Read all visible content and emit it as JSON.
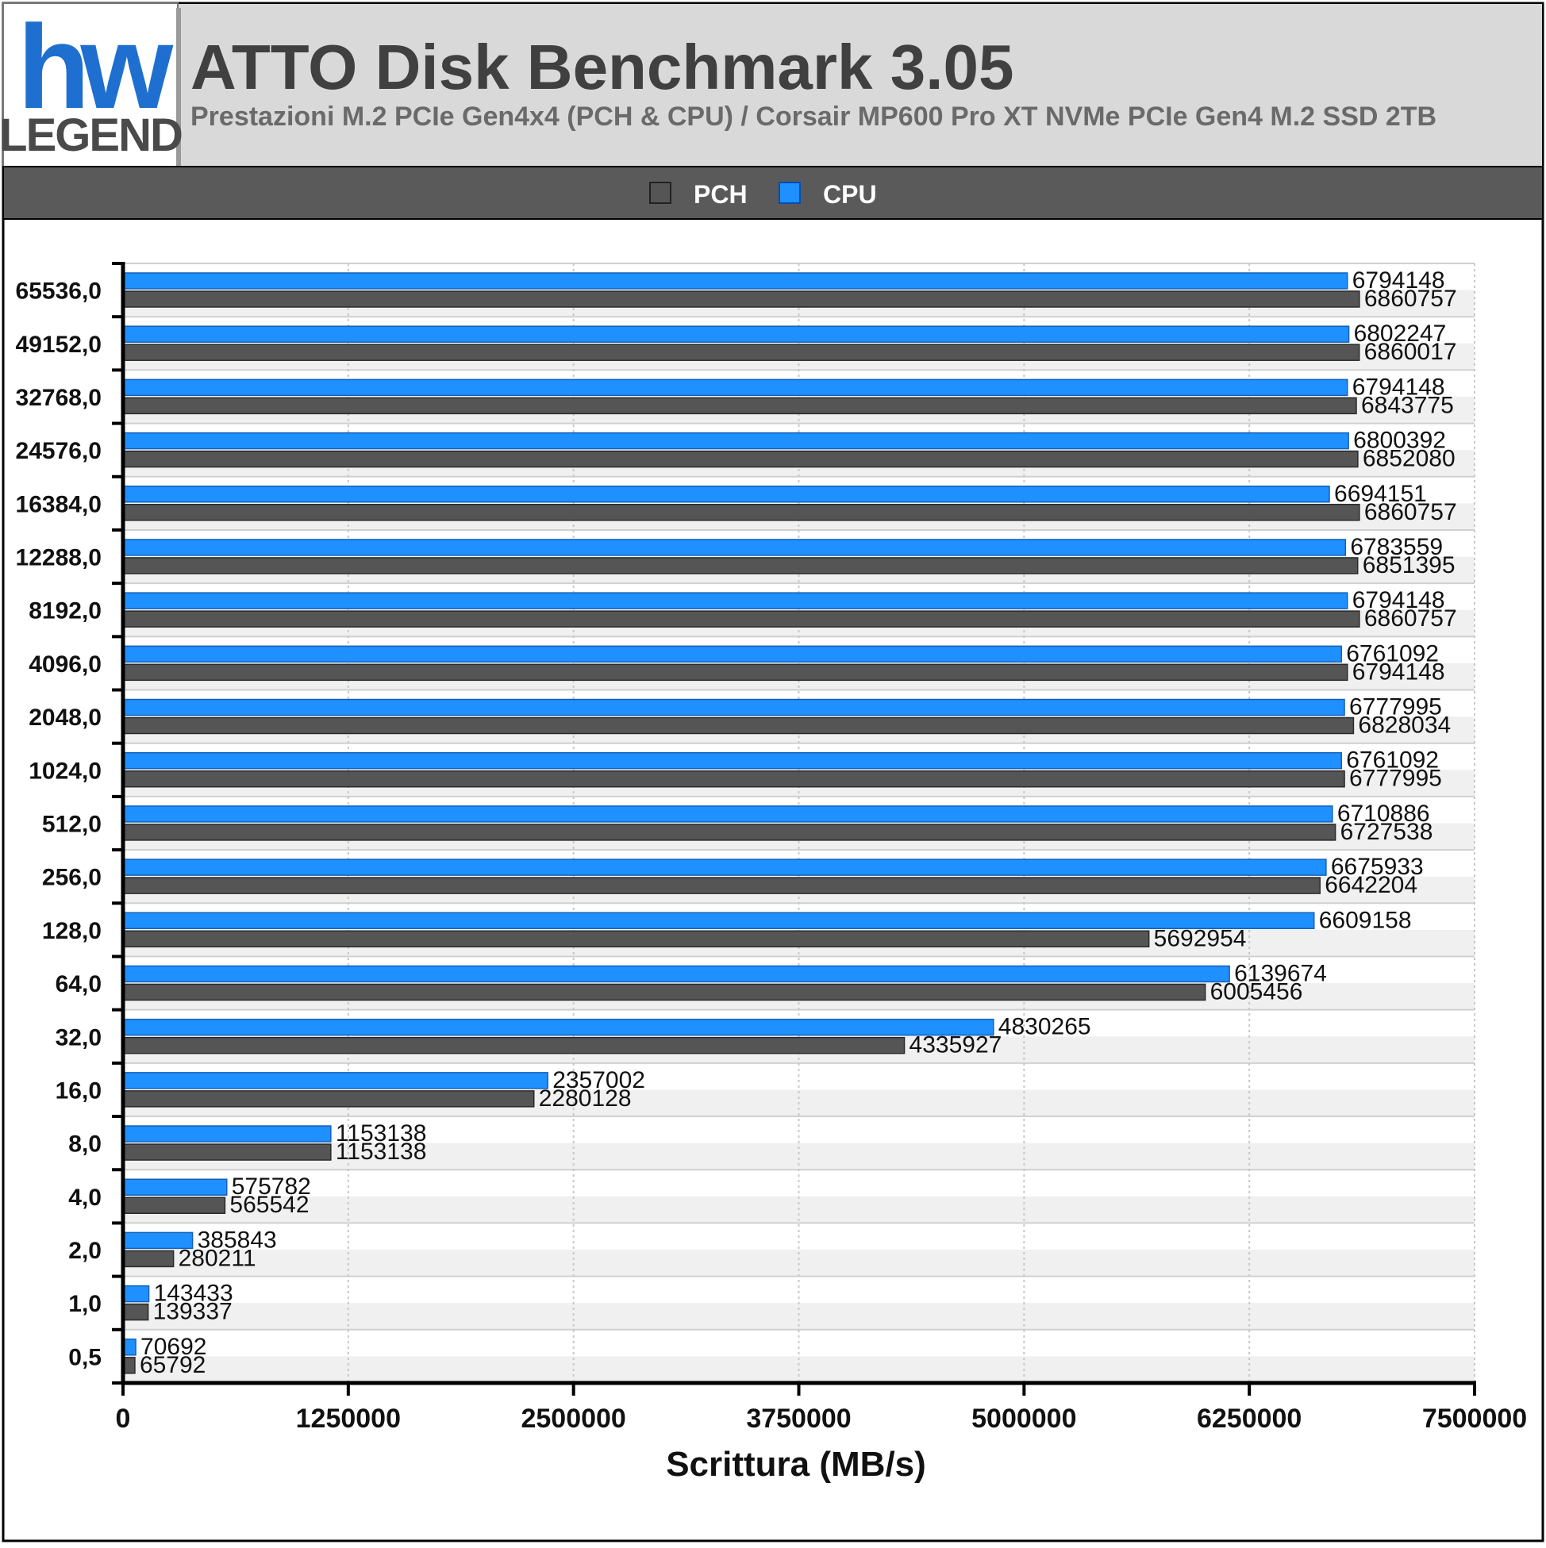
{
  "logo": {
    "mark": "hw",
    "word": "LEGEND"
  },
  "header": {
    "title": "ATTO Disk Benchmark 3.05",
    "subtitle": "Prestazioni M.2 PCIe Gen4x4 (PCH & CPU) / Corsair MP600 Pro XT NVMe PCIe Gen4 M.2 SSD 2TB"
  },
  "colors": {
    "pch": "#555555",
    "cpu": "#1e90ff",
    "header_bg": "#d9d9d9",
    "legend_bar": "#5a5a5a"
  },
  "chart_data": {
    "type": "bar",
    "orientation": "horizontal",
    "categories": [
      "65536,0",
      "49152,0",
      "32768,0",
      "24576,0",
      "16384,0",
      "12288,0",
      "8192,0",
      "4096,0",
      "2048,0",
      "1024,0",
      "512,0",
      "256,0",
      "128,0",
      "64,0",
      "32,0",
      "16,0",
      "8,0",
      "4,0",
      "2,0",
      "1,0",
      "0,5"
    ],
    "series": [
      {
        "name": "CPU",
        "values": [
          6794148,
          6802247,
          6794148,
          6800392,
          6694151,
          6783559,
          6794148,
          6761092,
          6777995,
          6761092,
          6710886,
          6675933,
          6609158,
          6139674,
          4830265,
          2357002,
          1153138,
          575782,
          385843,
          143433,
          70692
        ]
      },
      {
        "name": "PCH",
        "values": [
          6860757,
          6860017,
          6843775,
          6852080,
          6860757,
          6851395,
          6860757,
          6794148,
          6828034,
          6777995,
          6727538,
          6642204,
          5692954,
          6005456,
          4335927,
          2280128,
          1153138,
          565542,
          280211,
          139337,
          65792
        ]
      }
    ],
    "legend_order": [
      "PCH",
      "CPU"
    ],
    "xlabel": "Scrittura (MB/s)",
    "xlim": [
      0,
      7500000
    ],
    "xticks": [
      "0",
      "1250000",
      "2500000",
      "3750000",
      "5000000",
      "6250000",
      "7500000"
    ],
    "legend_position": "top",
    "grid": true
  }
}
